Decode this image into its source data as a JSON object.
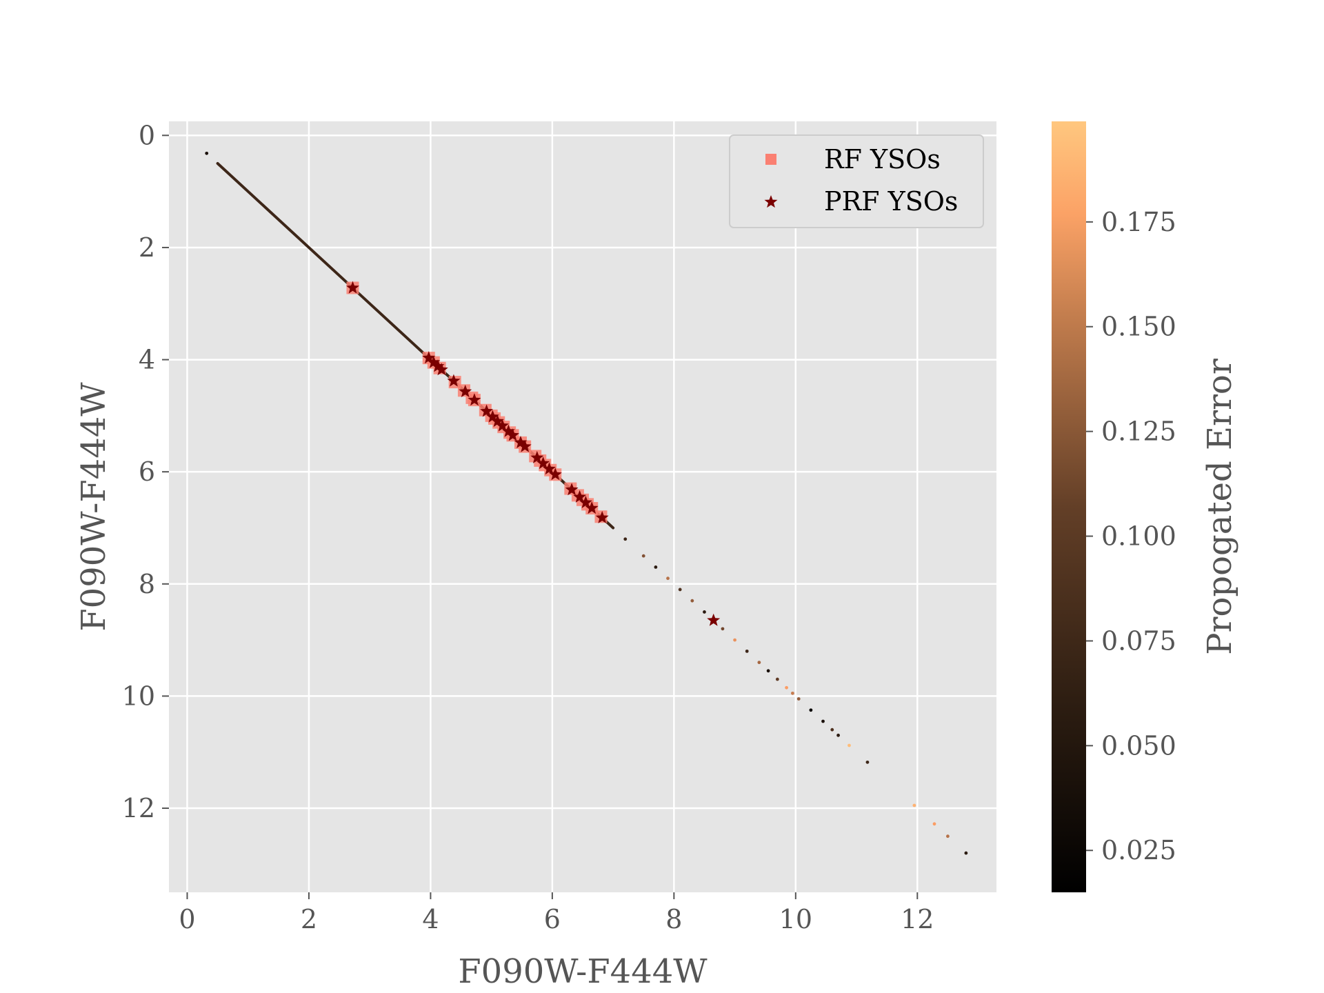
{
  "chart_data": {
    "type": "scatter",
    "xlabel": "F090W-F444W",
    "ylabel": "F090W-F444W",
    "xlim": [
      -0.3,
      13.3
    ],
    "ylim": [
      13.5,
      -0.25
    ],
    "y_inverted": true,
    "xticks": [
      0,
      2,
      4,
      6,
      8,
      10,
      12
    ],
    "yticks": [
      0,
      2,
      4,
      6,
      8,
      10,
      12
    ],
    "grid": true,
    "legend_position": "top-right",
    "colorbar": {
      "label": "Propogated Error",
      "range": [
        0.015,
        0.199
      ],
      "ticks": [
        0.025,
        0.05,
        0.075,
        0.1,
        0.125,
        0.15,
        0.175
      ],
      "tick_labels": [
        "0.025",
        "0.050",
        "0.075",
        "0.100",
        "0.125",
        "0.150",
        "0.175"
      ],
      "colormap": "copper"
    },
    "series": [
      {
        "name": "RF YSOs",
        "marker": "square",
        "color": "#fa8072",
        "x": [
          2.72,
          3.97,
          4.05,
          4.15,
          4.4,
          4.55,
          4.68,
          4.72,
          4.9,
          5.0,
          5.05,
          5.12,
          5.2,
          5.3,
          5.35,
          5.48,
          5.55,
          5.72,
          5.8,
          5.88,
          5.97,
          6.05,
          6.3,
          6.42,
          6.5,
          6.58,
          6.65,
          6.8
        ]
      },
      {
        "name": "PRF YSOs",
        "marker": "star",
        "color": "#7a0000",
        "x": [
          2.72,
          3.97,
          4.05,
          4.12,
          4.18,
          4.38,
          4.57,
          4.72,
          4.92,
          5.02,
          5.1,
          5.18,
          5.28,
          5.35,
          5.48,
          5.55,
          5.75,
          5.85,
          5.95,
          6.05,
          6.32,
          6.45,
          6.55,
          6.65,
          6.82,
          8.65
        ]
      },
      {
        "name": "",
        "marker": "dot",
        "line_segment": {
          "x_from": 0.5,
          "x_to": 7.0,
          "error": 0.05
        },
        "x": [
          0.32,
          7.2,
          7.5,
          7.7,
          7.9,
          8.1,
          8.3,
          8.5,
          8.8,
          9.0,
          9.2,
          9.4,
          9.55,
          9.7,
          9.85,
          9.95,
          10.05,
          10.25,
          10.45,
          10.6,
          10.7,
          10.88,
          11.18,
          11.95,
          12.28,
          12.5,
          12.8
        ],
        "error": [
          0.03,
          0.05,
          0.09,
          0.04,
          0.12,
          0.06,
          0.1,
          0.04,
          0.08,
          0.15,
          0.05,
          0.11,
          0.03,
          0.07,
          0.16,
          0.13,
          0.1,
          0.02,
          0.03,
          0.06,
          0.04,
          0.19,
          0.05,
          0.18,
          0.16,
          0.12,
          0.04
        ]
      }
    ]
  }
}
